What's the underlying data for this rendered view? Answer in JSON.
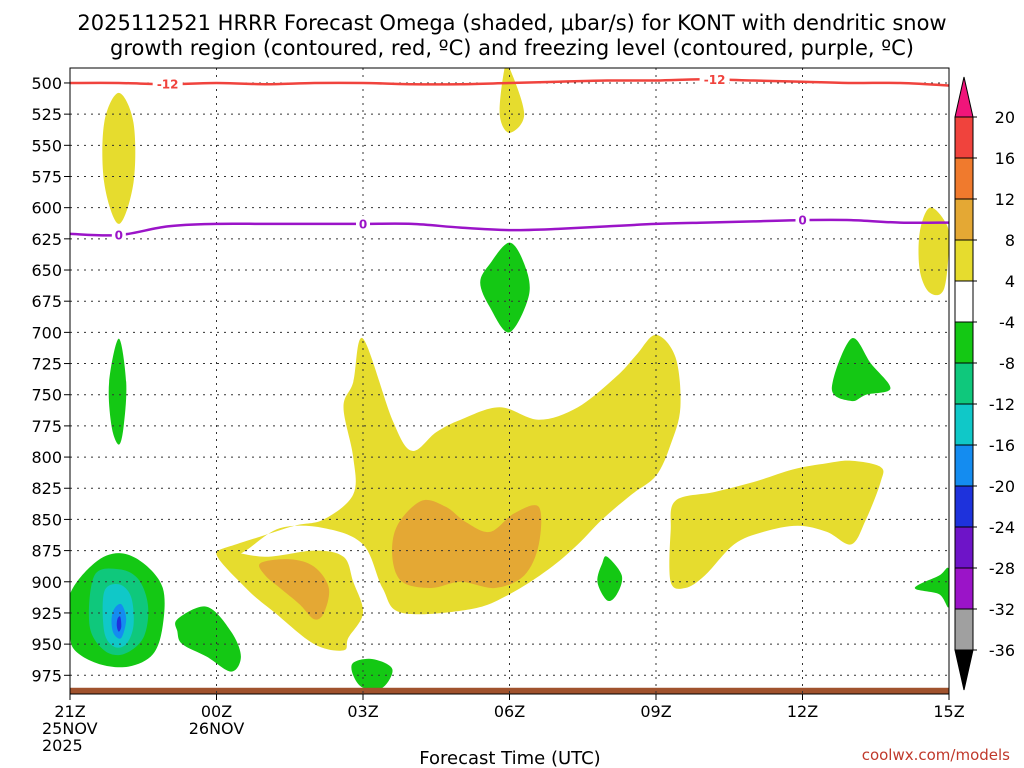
{
  "chart_data": {
    "type": "contour",
    "title_line1": "2025112521 HRRR Forecast Omega (shaded, μbar/s) for KONT with dendritic snow",
    "title_line2": "growth region (contoured, red, ºC) and freezing level (contoured, purple, ºC)",
    "xlabel": "Forecast Time (UTC)",
    "credit": "coolwx.com/models",
    "x_ticks": [
      {
        "hour": 0,
        "lines": [
          "21Z",
          "25NOV",
          "2025"
        ]
      },
      {
        "hour": 3,
        "lines": [
          "00Z",
          "26NOV"
        ]
      },
      {
        "hour": 6,
        "lines": [
          "03Z"
        ]
      },
      {
        "hour": 9,
        "lines": [
          "06Z"
        ]
      },
      {
        "hour": 12,
        "lines": [
          "09Z"
        ]
      },
      {
        "hour": 15,
        "lines": [
          "12Z"
        ]
      },
      {
        "hour": 18,
        "lines": [
          "15Z"
        ]
      }
    ],
    "x_range_hours": [
      0,
      18
    ],
    "y_ticks": [
      "500",
      "525",
      "550",
      "575",
      "600",
      "625",
      "650",
      "675",
      "700",
      "725",
      "750",
      "775",
      "800",
      "825",
      "850",
      "875",
      "900",
      "925",
      "950",
      "975"
    ],
    "y_range_mb": [
      488,
      990
    ],
    "colorbar": {
      "labels": [
        "20",
        "16",
        "12",
        "8",
        "4",
        "-4",
        "-8",
        "-12",
        "-16",
        "-20",
        "-24",
        "-28",
        "-32",
        "-36"
      ],
      "colors": [
        "#f0157a",
        "#f0433d",
        "#f07a2d",
        "#e4a834",
        "#e6dc2e",
        "#ffffff",
        "#14c814",
        "#0fc87c",
        "#10c8c8",
        "#148cf0",
        "#1e32dc",
        "#6e14c8",
        "#9b14c8",
        "#a0a0a0",
        "#000000"
      ]
    },
    "dgz_contour": {
      "label": "-12",
      "color": "#f0433d",
      "points": [
        [
          0,
          500
        ],
        [
          1,
          500
        ],
        [
          2,
          501
        ],
        [
          3,
          500
        ],
        [
          4,
          501
        ],
        [
          5,
          500
        ],
        [
          6,
          500
        ],
        [
          7,
          501
        ],
        [
          8,
          501
        ],
        [
          9,
          500
        ],
        [
          10,
          499
        ],
        [
          11,
          498
        ],
        [
          12,
          498
        ],
        [
          13,
          497
        ],
        [
          14,
          498
        ],
        [
          15,
          499
        ],
        [
          16,
          500
        ],
        [
          17,
          500
        ],
        [
          18,
          502
        ]
      ],
      "label_hours": [
        2.0,
        13.2
      ]
    },
    "freezing_contour": {
      "label": "0",
      "color": "#9b14c8",
      "points": [
        [
          0,
          621
        ],
        [
          1,
          622
        ],
        [
          2,
          615
        ],
        [
          3,
          613
        ],
        [
          4,
          613
        ],
        [
          5,
          613
        ],
        [
          6,
          613
        ],
        [
          7,
          613
        ],
        [
          8,
          616
        ],
        [
          9,
          618
        ],
        [
          10,
          617
        ],
        [
          11,
          615
        ],
        [
          12,
          613
        ],
        [
          13,
          612
        ],
        [
          14,
          611
        ],
        [
          15,
          610
        ],
        [
          16,
          610
        ],
        [
          17,
          612
        ],
        [
          18,
          612
        ]
      ],
      "label_hours": [
        1.0,
        6.0,
        15.0
      ]
    },
    "omega_regions": [
      {
        "value": 4,
        "color": "#e6dc2e",
        "points": [
          [
            1.0,
            508
          ],
          [
            1.3,
            532
          ],
          [
            1.3,
            580
          ],
          [
            1.0,
            613
          ],
          [
            0.7,
            580
          ],
          [
            0.7,
            532
          ]
        ]
      },
      {
        "value": 4,
        "color": "#e6dc2e",
        "points": [
          [
            9.0,
            488
          ],
          [
            9.3,
            525
          ],
          [
            9.0,
            540
          ],
          [
            8.8,
            525
          ],
          [
            8.9,
            488
          ]
        ]
      },
      {
        "value": 4,
        "color": "#e6dc2e",
        "points": [
          [
            17.6,
            600
          ],
          [
            17.9,
            610
          ],
          [
            18.0,
            625
          ],
          [
            17.9,
            665
          ],
          [
            17.6,
            668
          ],
          [
            17.4,
            650
          ],
          [
            17.4,
            620
          ]
        ]
      },
      {
        "value": 4,
        "color": "#e6dc2e",
        "points": [
          [
            6.0,
            705
          ],
          [
            6.6,
            770
          ],
          [
            7.0,
            795
          ],
          [
            7.5,
            780
          ],
          [
            8.0,
            770
          ],
          [
            8.8,
            760
          ],
          [
            9.6,
            770
          ],
          [
            10.4,
            760
          ],
          [
            11.2,
            735
          ],
          [
            11.6,
            718
          ],
          [
            12.0,
            702
          ],
          [
            12.4,
            720
          ],
          [
            12.5,
            760
          ],
          [
            12.3,
            790
          ],
          [
            12.0,
            815
          ],
          [
            11.5,
            830
          ],
          [
            10.9,
            850
          ],
          [
            10.4,
            870
          ],
          [
            9.8,
            890
          ],
          [
            9.0,
            910
          ],
          [
            8.2,
            922
          ],
          [
            6.8,
            925
          ],
          [
            6.4,
            905
          ],
          [
            6.0,
            870
          ],
          [
            5.2,
            857
          ],
          [
            4.3,
            857
          ],
          [
            3.6,
            875
          ],
          [
            3.3,
            880
          ],
          [
            3.0,
            876
          ],
          [
            3.4,
            870
          ],
          [
            3.8,
            865
          ],
          [
            4.6,
            855
          ],
          [
            5.2,
            850
          ],
          [
            5.8,
            830
          ],
          [
            5.8,
            800
          ],
          [
            5.6,
            760
          ],
          [
            5.8,
            740
          ]
        ]
      },
      {
        "value": 4,
        "color": "#e6dc2e",
        "points": [
          [
            3.0,
            876
          ],
          [
            3.6,
            905
          ],
          [
            4.2,
            925
          ],
          [
            5.0,
            950
          ],
          [
            5.6,
            955
          ],
          [
            5.7,
            945
          ],
          [
            6.0,
            925
          ],
          [
            5.8,
            900
          ],
          [
            5.6,
            880
          ],
          [
            5.0,
            875
          ],
          [
            4.0,
            880
          ]
        ]
      },
      {
        "value": 4,
        "color": "#e6dc2e",
        "points": [
          [
            12.4,
            835
          ],
          [
            13.2,
            828
          ],
          [
            14.0,
            820
          ],
          [
            14.8,
            810
          ],
          [
            15.5,
            805
          ],
          [
            16.0,
            803
          ],
          [
            16.6,
            808
          ],
          [
            16.6,
            820
          ],
          [
            16.3,
            850
          ],
          [
            16.0,
            870
          ],
          [
            15.5,
            860
          ],
          [
            14.9,
            855
          ],
          [
            14.2,
            860
          ],
          [
            13.6,
            870
          ],
          [
            13.0,
            895
          ],
          [
            12.6,
            905
          ],
          [
            12.3,
            900
          ],
          [
            12.3,
            860
          ]
        ]
      },
      {
        "value": 8,
        "color": "#e4a834",
        "points": [
          [
            3.9,
            885
          ],
          [
            4.5,
            882
          ],
          [
            5.0,
            888
          ],
          [
            5.3,
            905
          ],
          [
            5.2,
            925
          ],
          [
            5.0,
            930
          ],
          [
            4.7,
            918
          ],
          [
            4.3,
            905
          ],
          [
            4.0,
            895
          ]
        ]
      },
      {
        "value": 8,
        "color": "#e4a834",
        "points": [
          [
            6.7,
            855
          ],
          [
            7.2,
            835
          ],
          [
            7.7,
            840
          ],
          [
            8.1,
            852
          ],
          [
            8.6,
            860
          ],
          [
            9.1,
            845
          ],
          [
            9.6,
            840
          ],
          [
            9.6,
            870
          ],
          [
            9.3,
            895
          ],
          [
            8.7,
            905
          ],
          [
            8.0,
            900
          ],
          [
            7.4,
            905
          ],
          [
            6.8,
            900
          ],
          [
            6.6,
            880
          ]
        ]
      },
      {
        "value": -4,
        "color": "#14c814",
        "points": [
          [
            9.0,
            628
          ],
          [
            9.3,
            645
          ],
          [
            9.4,
            670
          ],
          [
            9.0,
            700
          ],
          [
            8.6,
            680
          ],
          [
            8.4,
            660
          ],
          [
            8.6,
            645
          ]
        ]
      },
      {
        "value": -4,
        "color": "#14c814",
        "points": [
          [
            1.0,
            705
          ],
          [
            1.15,
            740
          ],
          [
            1.1,
            775
          ],
          [
            1.0,
            790
          ],
          [
            0.85,
            775
          ],
          [
            0.8,
            740
          ]
        ]
      },
      {
        "value": -4,
        "color": "#14c814",
        "points": [
          [
            16.0,
            705
          ],
          [
            16.4,
            725
          ],
          [
            16.8,
            745
          ],
          [
            16.3,
            750
          ],
          [
            16.0,
            755
          ],
          [
            15.6,
            745
          ]
        ]
      },
      {
        "value": -4,
        "color": "#14c814",
        "points": [
          [
            11.0,
            880
          ],
          [
            11.3,
            895
          ],
          [
            11.2,
            910
          ],
          [
            11.0,
            915
          ],
          [
            10.8,
            900
          ],
          [
            10.9,
            885
          ]
        ]
      },
      {
        "value": -4,
        "color": "#14c814",
        "points": [
          [
            17.8,
            895
          ],
          [
            18.0,
            890
          ],
          [
            18.0,
            920
          ],
          [
            17.8,
            910
          ],
          [
            17.3,
            905
          ]
        ]
      },
      {
        "value": -4,
        "color": "#14c814",
        "points": [
          [
            2.2,
            930
          ],
          [
            2.8,
            920
          ],
          [
            3.3,
            940
          ],
          [
            3.5,
            960
          ],
          [
            3.3,
            972
          ],
          [
            2.8,
            960
          ],
          [
            2.3,
            950
          ],
          [
            2.2,
            940
          ]
        ]
      },
      {
        "value": -4,
        "color": "#14c814",
        "points": [
          [
            5.8,
            965
          ],
          [
            6.2,
            962
          ],
          [
            6.6,
            970
          ],
          [
            6.4,
            985
          ],
          [
            6.0,
            985
          ],
          [
            5.8,
            975
          ]
        ]
      },
      {
        "value": -4,
        "color": "#14c814",
        "points": [
          [
            0.0,
            910
          ],
          [
            0.5,
            885
          ],
          [
            1.0,
            877
          ],
          [
            1.5,
            885
          ],
          [
            1.9,
            905
          ],
          [
            1.9,
            935
          ],
          [
            1.7,
            958
          ],
          [
            1.2,
            968
          ],
          [
            0.6,
            966
          ],
          [
            0.1,
            955
          ],
          [
            0.0,
            940
          ]
        ]
      },
      {
        "value": -8,
        "color": "#0fc87c",
        "points": [
          [
            0.5,
            895
          ],
          [
            1.0,
            890
          ],
          [
            1.4,
            898
          ],
          [
            1.6,
            920
          ],
          [
            1.5,
            945
          ],
          [
            1.1,
            958
          ],
          [
            0.7,
            955
          ],
          [
            0.4,
            935
          ]
        ]
      },
      {
        "value": -12,
        "color": "#10c8c8",
        "points": [
          [
            0.7,
            908
          ],
          [
            1.0,
            902
          ],
          [
            1.25,
            912
          ],
          [
            1.3,
            935
          ],
          [
            1.15,
            950
          ],
          [
            0.9,
            952
          ],
          [
            0.7,
            940
          ]
        ]
      },
      {
        "value": -16,
        "color": "#148cf0",
        "points": [
          [
            0.9,
            922
          ],
          [
            1.05,
            918
          ],
          [
            1.15,
            930
          ],
          [
            1.05,
            945
          ],
          [
            0.9,
            942
          ],
          [
            0.85,
            932
          ]
        ]
      },
      {
        "value": -20,
        "color": "#1e32dc",
        "points": [
          [
            0.97,
            930
          ],
          [
            1.03,
            928
          ],
          [
            1.05,
            936
          ],
          [
            1.0,
            940
          ],
          [
            0.96,
            936
          ]
        ]
      }
    ],
    "ground": {
      "color": "#a0522d",
      "top_mb": 985
    }
  }
}
